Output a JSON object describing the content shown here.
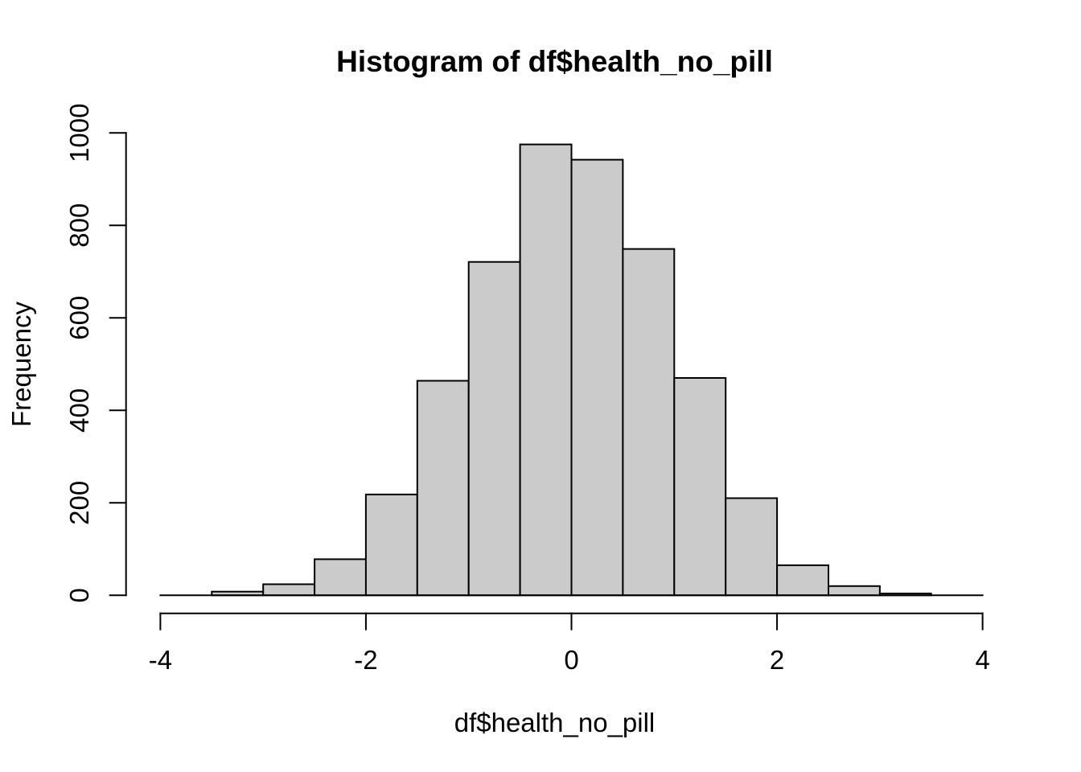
{
  "chart_data": {
    "type": "bar",
    "subtype": "histogram",
    "title": "Histogram of df$health_no_pill",
    "xlabel": "df$health_no_pill",
    "ylabel": "Frequency",
    "bin_edges": [
      -4.0,
      -3.5,
      -3.0,
      -2.5,
      -2.0,
      -1.5,
      -1.0,
      -0.5,
      0.0,
      0.5,
      1.0,
      1.5,
      2.0,
      2.5,
      3.0,
      3.5,
      4.0
    ],
    "counts": [
      0,
      8,
      24,
      78,
      218,
      464,
      721,
      975,
      942,
      749,
      470,
      210,
      65,
      20,
      4,
      0
    ],
    "x_ticks": [
      -4,
      -2,
      0,
      2,
      4
    ],
    "x_tick_labels": [
      "-4",
      "-2",
      "0",
      "2",
      "4"
    ],
    "y_ticks": [
      0,
      200,
      400,
      600,
      800,
      1000
    ],
    "y_tick_labels": [
      "0",
      "200",
      "400",
      "600",
      "800",
      "1000"
    ],
    "xlim": [
      -4,
      4
    ],
    "ylim": [
      0,
      1000
    ],
    "grid": false,
    "legend": false,
    "bar_fill": "#CBCBCB",
    "bar_border": "#000000",
    "axis_color": "#000000",
    "text_color": "#000000",
    "background": "#FFFFFF"
  }
}
